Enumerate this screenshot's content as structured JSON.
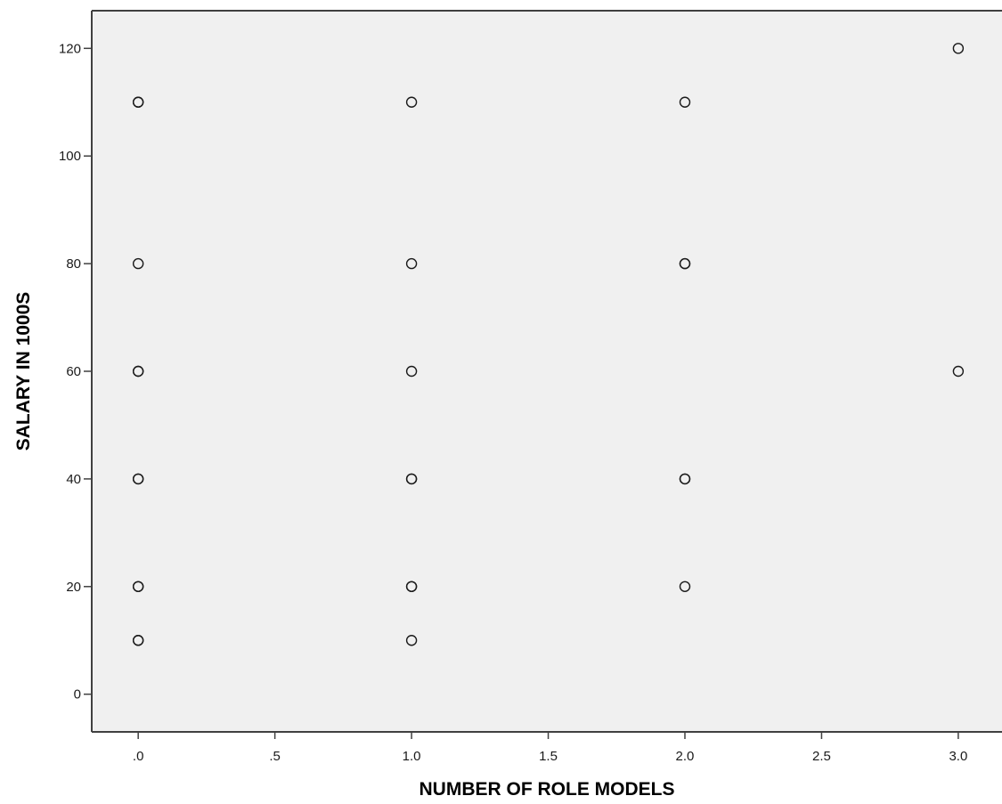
{
  "chart_data": {
    "type": "scatter",
    "title": "",
    "xlabel": "NUMBER OF ROLE MODELS",
    "ylabel": "SALARY IN 1000S",
    "xlim": [
      -0.17,
      3.16
    ],
    "ylim": [
      -7,
      127
    ],
    "x_ticks": [
      0,
      0.5,
      1,
      1.5,
      2,
      2.5,
      3
    ],
    "x_tick_labels": [
      ".0",
      ".5",
      "1.0",
      "1.5",
      "2.0",
      "2.5",
      "3.0"
    ],
    "y_ticks": [
      0,
      20,
      40,
      60,
      80,
      100,
      120
    ],
    "y_tick_labels": [
      "0",
      "20",
      "40",
      "60",
      "80",
      "100",
      "120"
    ],
    "grid": false,
    "legend": "none",
    "colors": {
      "plot_background": "#f0f0f0",
      "axis": "#404040",
      "marker_stroke": "#1a1a1a",
      "marker_fill": "#f0f0f0"
    },
    "series": [
      {
        "marker": "circle",
        "points": [
          {
            "x": 0,
            "y": 110
          },
          {
            "x": 0,
            "y": 110
          },
          {
            "x": 0,
            "y": 80
          },
          {
            "x": 0,
            "y": 60
          },
          {
            "x": 0,
            "y": 60
          },
          {
            "x": 0,
            "y": 40
          },
          {
            "x": 0,
            "y": 40
          },
          {
            "x": 0,
            "y": 20
          },
          {
            "x": 0,
            "y": 20
          },
          {
            "x": 0,
            "y": 10
          },
          {
            "x": 0,
            "y": 10
          },
          {
            "x": 1,
            "y": 110
          },
          {
            "x": 1,
            "y": 80
          },
          {
            "x": 1,
            "y": 60
          },
          {
            "x": 1,
            "y": 40
          },
          {
            "x": 1,
            "y": 40
          },
          {
            "x": 1,
            "y": 20
          },
          {
            "x": 1,
            "y": 20
          },
          {
            "x": 1,
            "y": 10
          },
          {
            "x": 2,
            "y": 110
          },
          {
            "x": 2,
            "y": 80
          },
          {
            "x": 2,
            "y": 80
          },
          {
            "x": 2,
            "y": 40
          },
          {
            "x": 2,
            "y": 40
          },
          {
            "x": 2,
            "y": 20
          },
          {
            "x": 3,
            "y": 120
          },
          {
            "x": 3,
            "y": 60
          }
        ]
      }
    ]
  }
}
